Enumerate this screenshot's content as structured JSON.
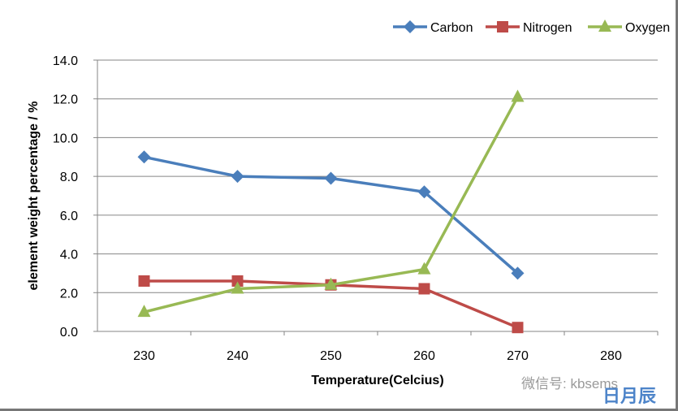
{
  "chart_data": {
    "type": "line",
    "title": "",
    "xlabel": "Temperature(Celcius)",
    "ylabel": "element weight percentage / %",
    "x": [
      230,
      240,
      250,
      260,
      270
    ],
    "xticks": [
      "230",
      "240",
      "250",
      "260",
      "270",
      "280"
    ],
    "xlim": [
      225,
      285
    ],
    "yticks": [
      "0.0",
      "2.0",
      "4.0",
      "6.0",
      "8.0",
      "10.0",
      "12.0",
      "14.0"
    ],
    "ylim": [
      0,
      14
    ],
    "grid": true,
    "legend": "top-right",
    "series": [
      {
        "name": "Carbon",
        "color": "#4a7ebb",
        "marker": "diamond",
        "values": [
          9.0,
          8.0,
          7.9,
          7.2,
          3.0
        ]
      },
      {
        "name": "Nitrogen",
        "color": "#be4b48",
        "marker": "square",
        "values": [
          2.6,
          2.6,
          2.4,
          2.2,
          0.2
        ]
      },
      {
        "name": "Oxygen",
        "color": "#98b954",
        "marker": "triangle",
        "values": [
          1.0,
          2.2,
          2.4,
          3.2,
          12.1
        ]
      }
    ]
  },
  "watermark": {
    "text": "微信号: kbsems",
    "logo": "日月辰"
  }
}
